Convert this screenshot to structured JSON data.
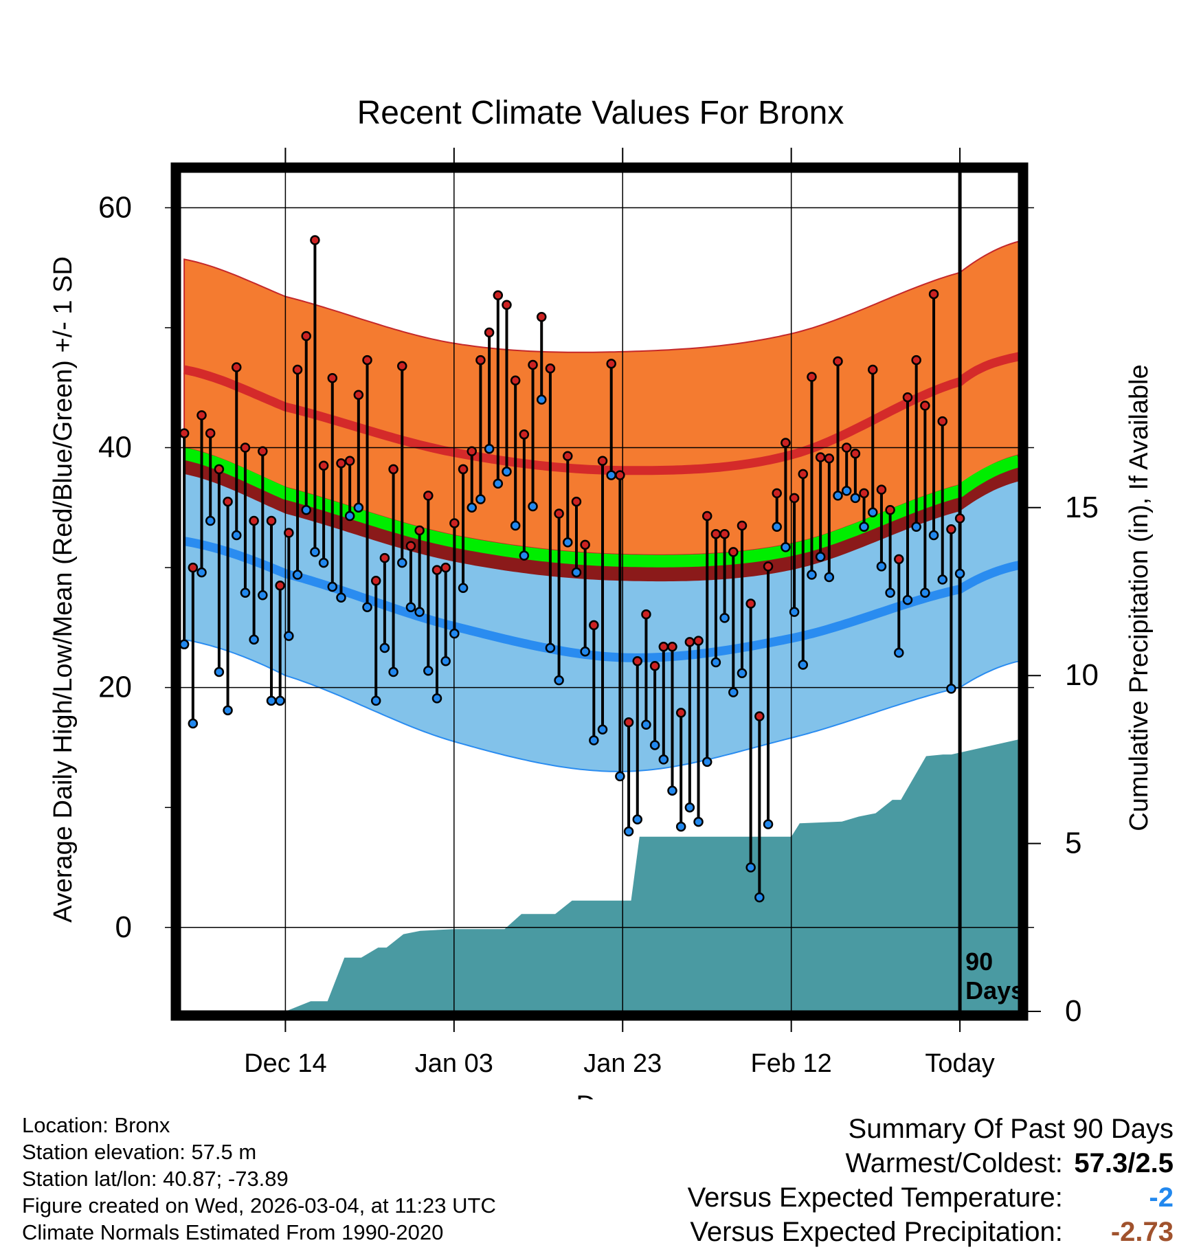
{
  "chart_data": {
    "type": "line",
    "title": "Recent Climate Values For Bronx",
    "xlabel": "Day",
    "ylabel": "Average Daily High/Low/Mean (Red/Blue/Green) +/- 1 SD",
    "y2label": "Cumulative Precipitation (in), If Available",
    "ylim": [
      -7,
      63
    ],
    "y2lim": [
      0,
      25
    ],
    "xlim": [
      -12.5,
      87
    ],
    "yticks": [
      0,
      20,
      40,
      60
    ],
    "y2ticks": [
      0,
      5,
      10,
      15
    ],
    "xticks": [
      {
        "day": 0,
        "label": "Dec 14"
      },
      {
        "day": 20,
        "label": "Jan 03"
      },
      {
        "day": 40,
        "label": "Jan 23"
      },
      {
        "day": 60,
        "label": "Feb 12"
      },
      {
        "day": 80,
        "label": "Today"
      }
    ],
    "today_day": 80,
    "today_marker": "90 Days",
    "normals": {
      "days": [
        -12,
        0,
        20,
        40,
        60,
        80,
        87
      ],
      "high_mean": [
        46.5,
        43.4,
        39.6,
        38.1,
        39.4,
        45.5,
        47.6
      ],
      "high_upper": [
        55.7,
        52.6,
        48.7,
        48.0,
        49.5,
        54.6,
        57.2
      ],
      "mean_mean": [
        40.0,
        36.7,
        32.7,
        31.1,
        32.0,
        36.9,
        39.4
      ],
      "low_mean": [
        32.2,
        29.5,
        25.1,
        22.5,
        24.1,
        28.2,
        30.2
      ],
      "low_lower": [
        24.0,
        21.0,
        15.5,
        13.0,
        15.8,
        20.0,
        22.2
      ]
    },
    "series": [
      {
        "name": "High",
        "color": "#cc2222",
        "values": [
          41.2,
          30.0,
          42.7,
          41.2,
          38.2,
          35.5,
          46.7,
          40.0,
          33.9,
          39.7,
          33.9,
          28.5,
          32.9,
          46.5,
          49.3,
          57.3,
          38.5,
          45.8,
          38.7,
          38.9,
          44.4,
          47.3,
          28.9,
          30.8,
          38.2,
          46.8,
          31.8,
          33.1,
          36.0,
          29.8,
          30.0,
          33.7,
          38.2,
          39.7,
          47.3,
          49.6,
          52.7,
          51.9,
          45.6,
          41.1,
          46.9,
          50.9,
          46.6,
          34.5,
          39.3,
          35.5,
          31.9,
          25.2,
          38.9,
          47.0,
          37.7,
          17.1,
          22.2,
          26.1,
          21.8,
          23.4,
          23.4,
          17.9,
          23.8,
          23.9,
          34.3,
          32.8,
          32.8,
          31.3,
          33.5,
          27.0,
          17.6,
          30.1,
          36.2,
          40.4,
          35.8,
          37.8,
          45.9,
          39.2,
          39.1,
          47.2,
          40.0,
          39.5,
          36.2,
          46.5,
          36.5,
          34.8,
          30.7,
          44.2,
          47.3,
          43.5,
          52.8,
          42.2,
          33.2,
          34.1
        ]
      },
      {
        "name": "Low",
        "color": "#2288ee",
        "values": [
          23.6,
          17.0,
          29.6,
          33.9,
          21.3,
          18.1,
          32.7,
          27.9,
          24.0,
          27.7,
          18.9,
          18.9,
          24.3,
          29.4,
          34.8,
          31.3,
          30.4,
          28.4,
          27.5,
          34.3,
          35.0,
          26.7,
          18.9,
          23.3,
          21.3,
          30.4,
          26.7,
          26.3,
          21.4,
          19.1,
          22.2,
          24.5,
          28.3,
          35.0,
          35.7,
          39.9,
          37.0,
          38.0,
          33.5,
          31.0,
          35.1,
          44.0,
          23.3,
          20.6,
          32.1,
          29.6,
          23.0,
          15.6,
          16.5,
          37.7,
          12.6,
          8.0,
          9.0,
          16.9,
          15.2,
          14.0,
          11.4,
          8.4,
          10.0,
          8.8,
          13.8,
          22.1,
          25.8,
          19.6,
          21.2,
          5.0,
          2.5,
          8.6,
          33.4,
          31.7,
          26.3,
          21.9,
          29.4,
          30.9,
          29.2,
          36.0,
          36.4,
          35.8,
          33.4,
          34.6,
          30.1,
          27.9,
          22.9,
          27.3,
          33.4,
          27.9,
          32.7,
          29.0,
          19.9,
          29.5
        ]
      }
    ],
    "precip_cumulative": {
      "days": [
        -12,
        0,
        3,
        5,
        7,
        9,
        11,
        12,
        14,
        16,
        20,
        26,
        28,
        32,
        34,
        38,
        41,
        42,
        60,
        61,
        66,
        68,
        70,
        72,
        73,
        76,
        78,
        79,
        87
      ],
      "values": [
        0,
        0,
        0.3,
        0.3,
        1.6,
        1.6,
        1.9,
        1.9,
        2.3,
        2.4,
        2.45,
        2.45,
        2.9,
        2.9,
        3.3,
        3.3,
        3.3,
        5.2,
        5.2,
        5.6,
        5.65,
        5.8,
        5.9,
        6.3,
        6.3,
        7.6,
        7.65,
        7.65,
        8.1
      ]
    }
  },
  "footer": {
    "location": "Location: Bronx",
    "elevation": "Station elevation: 57.5 m",
    "latlon": "Station lat/lon: 40.87; -73.89",
    "created": "Figure created on Wed, 2026-03-04, at 11:23 UTC",
    "normals": "Climate Normals Estimated From 1990-2020"
  },
  "summary": {
    "title": "Summary Of Past 90 Days",
    "warmest_label": "Warmest/Coldest:",
    "warmest_value": "57.3/2.5",
    "temp_label": "Versus Expected Temperature:",
    "temp_value": "-2",
    "temp_color": "#2288ee",
    "precip_label": "Versus Expected Precipitation:",
    "precip_value": "-2.73",
    "precip_color": "#a0522d"
  },
  "colors": {
    "high_band": "#f47b30",
    "high_line": "#d42a2a",
    "low_band": "#82c2ea",
    "low_line": "#2a8cf0",
    "mean_line": "#00ee00",
    "mean_band_dark": "#8b1a1a",
    "precip_fill": "#4a9aa2",
    "high_dot": "#cc2222",
    "low_dot": "#2288ee"
  }
}
